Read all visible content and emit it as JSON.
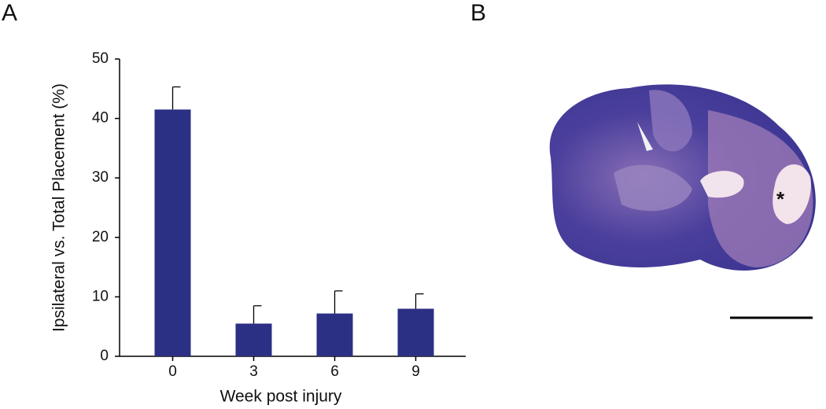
{
  "chart_data": {
    "type": "bar",
    "panel_label": "A",
    "xlabel": "Week post injury",
    "ylabel": "Ipsilateral vs. Total Placement (%)",
    "categories": [
      "0",
      "3",
      "6",
      "9"
    ],
    "values": [
      41.5,
      5.5,
      7.2,
      8.0
    ],
    "errors": [
      3.8,
      3.0,
      3.8,
      2.5
    ],
    "color": "#2b3085",
    "ylim": [
      0,
      50
    ],
    "yticks": [
      0,
      10,
      20,
      30,
      40,
      50
    ],
    "grid": false
  },
  "image_panel": {
    "label": "B",
    "annotation": "*"
  }
}
